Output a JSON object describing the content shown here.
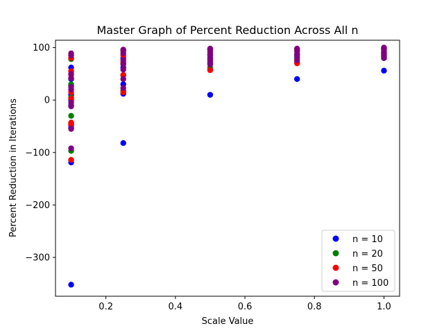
{
  "chart_data": {
    "type": "scatter",
    "title": "Master Graph of Percent Reduction Across All n",
    "xlabel": "Scale Value",
    "ylabel": "Percent Reduction in Iterations",
    "xlim": [
      0.055,
      1.045
    ],
    "ylim": [
      -374,
      114
    ],
    "xticks": [
      0.2,
      0.4,
      0.6,
      0.8,
      1.0
    ],
    "xtick_labels": [
      "0.2",
      "0.4",
      "0.6",
      "0.8",
      "1.0"
    ],
    "yticks": [
      -300,
      -200,
      -100,
      0,
      100
    ],
    "ytick_labels": [
      "−300",
      "−200",
      "−100",
      "0",
      "100"
    ],
    "grid": false,
    "legend_position": "lower-right",
    "series": [
      {
        "name": "n = 10",
        "color": "#0000ff",
        "points": [
          [
            0.1,
            62
          ],
          [
            0.1,
            40
          ],
          [
            0.1,
            27
          ],
          [
            0.1,
            10
          ],
          [
            0.1,
            0
          ],
          [
            0.1,
            -10
          ],
          [
            0.1,
            -48
          ],
          [
            0.1,
            -53
          ],
          [
            0.1,
            -119
          ],
          [
            0.1,
            -352
          ],
          [
            0.25,
            95
          ],
          [
            0.25,
            80
          ],
          [
            0.25,
            62
          ],
          [
            0.25,
            47
          ],
          [
            0.25,
            30
          ],
          [
            0.25,
            12
          ],
          [
            0.25,
            -82
          ],
          [
            0.5,
            97
          ],
          [
            0.5,
            85
          ],
          [
            0.5,
            70
          ],
          [
            0.5,
            58
          ],
          [
            0.5,
            10
          ],
          [
            0.75,
            97
          ],
          [
            0.75,
            85
          ],
          [
            0.75,
            72
          ],
          [
            0.75,
            40
          ],
          [
            1.0,
            99
          ],
          [
            1.0,
            90
          ],
          [
            1.0,
            80
          ],
          [
            1.0,
            56
          ]
        ]
      },
      {
        "name": "n = 20",
        "color": "#008000",
        "points": [
          [
            0.1,
            78
          ],
          [
            0.1,
            30
          ],
          [
            0.1,
            5
          ],
          [
            0.1,
            -30
          ],
          [
            0.1,
            -44
          ],
          [
            0.1,
            -97
          ],
          [
            0.25,
            93
          ],
          [
            0.25,
            70
          ],
          [
            0.25,
            47
          ],
          [
            0.25,
            18
          ],
          [
            0.5,
            97
          ],
          [
            0.5,
            80
          ],
          [
            0.5,
            62
          ],
          [
            0.75,
            95
          ],
          [
            0.75,
            80
          ],
          [
            1.0,
            98
          ],
          [
            1.0,
            86
          ]
        ]
      },
      {
        "name": "n = 50",
        "color": "#ff0000",
        "points": [
          [
            0.1,
            80
          ],
          [
            0.1,
            55
          ],
          [
            0.1,
            48
          ],
          [
            0.1,
            15
          ],
          [
            0.1,
            3
          ],
          [
            0.1,
            -43
          ],
          [
            0.1,
            -46
          ],
          [
            0.1,
            -114
          ],
          [
            0.25,
            94
          ],
          [
            0.25,
            85
          ],
          [
            0.25,
            72
          ],
          [
            0.25,
            48
          ],
          [
            0.25,
            15
          ],
          [
            0.5,
            96
          ],
          [
            0.5,
            88
          ],
          [
            0.5,
            77
          ],
          [
            0.5,
            57
          ],
          [
            0.75,
            96
          ],
          [
            0.75,
            88
          ],
          [
            0.75,
            70
          ],
          [
            1.0,
            98
          ],
          [
            1.0,
            90
          ],
          [
            1.0,
            83
          ]
        ]
      },
      {
        "name": "n = 100",
        "color": "#800080",
        "points": [
          [
            0.1,
            89
          ],
          [
            0.1,
            85
          ],
          [
            0.1,
            50
          ],
          [
            0.1,
            42
          ],
          [
            0.1,
            25
          ],
          [
            0.1,
            20
          ],
          [
            0.1,
            -5
          ],
          [
            0.1,
            -12
          ],
          [
            0.1,
            -55
          ],
          [
            0.1,
            -92
          ],
          [
            0.25,
            96
          ],
          [
            0.25,
            89
          ],
          [
            0.25,
            76
          ],
          [
            0.25,
            68
          ],
          [
            0.25,
            58
          ],
          [
            0.25,
            40
          ],
          [
            0.25,
            23
          ],
          [
            0.5,
            98
          ],
          [
            0.5,
            92
          ],
          [
            0.5,
            86
          ],
          [
            0.5,
            80
          ],
          [
            0.5,
            74
          ],
          [
            0.5,
            68
          ],
          [
            0.75,
            98
          ],
          [
            0.75,
            93
          ],
          [
            0.75,
            87
          ],
          [
            0.75,
            81
          ],
          [
            0.75,
            76
          ],
          [
            1.0,
            100
          ],
          [
            1.0,
            96
          ],
          [
            1.0,
            92
          ],
          [
            1.0,
            88
          ],
          [
            1.0,
            84
          ],
          [
            1.0,
            80
          ]
        ]
      }
    ]
  }
}
